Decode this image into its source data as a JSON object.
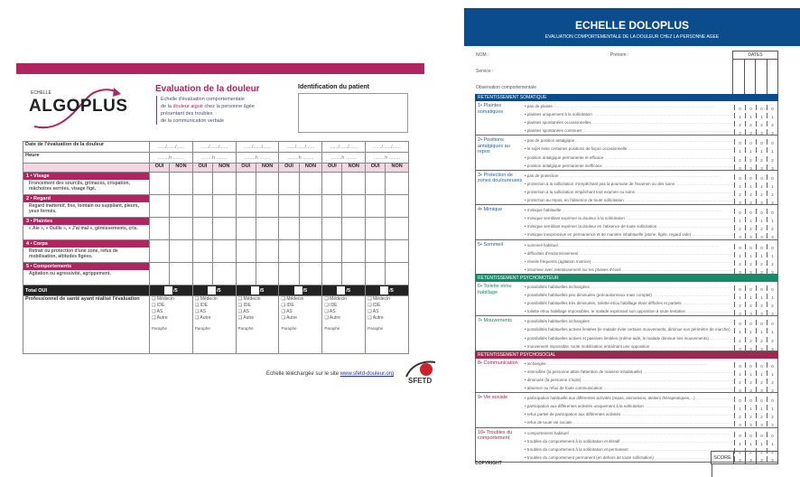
{
  "algoplus": {
    "accent": "#b0245f",
    "logo_small": "ECHELLE",
    "logo_main": "ALGOPLUS",
    "title": "Evaluation de la douleur",
    "desc": [
      "Echelle d'évaluation comportementale",
      "de la ",
      "douleur aiguë",
      " chez la personne âgée",
      "présentant des troubles",
      "de la communication verbale"
    ],
    "id_title": "Identification du patient",
    "date_label": "Date de l'évaluation de la douleur",
    "date_placeholder": "....../....../......",
    "hour_label": "Heure",
    "hour_placeholder": "........h ........",
    "oui": "OUI",
    "non": "NON",
    "items": [
      {
        "title": "1 • Visage",
        "desc": "Froncement des sourcils, grimaces, crispation, mâchoires serrées, visage figé."
      },
      {
        "title": "2 • Regard",
        "desc": "Regard inattentif, fixe, lointain ou suppliant, pleurs, yeux fermés."
      },
      {
        "title": "3 • Plaintes",
        "desc": "« Aie », « Ouille », « J'ai mal », gémissements, cris."
      },
      {
        "title": "4 • Corps",
        "desc": "Retrait ou protection d'une zone, refus de mobilisation, attitudes figées."
      },
      {
        "title": "5 • Comportements",
        "desc": "Agitation ou agressivité, agrippement."
      }
    ],
    "total_label": "Total OUI",
    "total_suffix": "/5",
    "prof_label": "Professionnel de santé ayant réalisé l'évaluation",
    "prof_options": [
      "❑ Médecin",
      "❑ IDE",
      "❑ AS",
      "❑ Autre"
    ],
    "paraphe": "Paraphe",
    "footer_text": "Echelle téléchargée sur le site ",
    "footer_link": "www.sfetd-douleur.org",
    "sfetd_logo": "SFETD"
  },
  "doloplus": {
    "accent": "#0b4d8c",
    "title": "ECHELLE DOLOPLUS",
    "subtitle": "EVALUATION COMPORTEMENTALE DE LA DOULEUR CHEZ LA PERSONNE AGEE",
    "nom": "NOM :",
    "prenom": "Prénom :",
    "service": "Service :",
    "observation": "Observation comportementale",
    "dates": "DATES",
    "sections": [
      {
        "title": "RETENTISSEMENT SOMATIQUE",
        "color": "#0b4d8c",
        "label_color": "#2a5fa0",
        "groups": [
          {
            "label": "1• Plaintes somatiques",
            "lines": [
              "pas de plainte",
              "plaintes uniquement à la sollicitation",
              "plaintes spontanées occasionnelles",
              "plaintes spontanées continues"
            ]
          },
          {
            "label": "2• Positions antalgiques au repos",
            "lines": [
              "pas de position antalgique",
              "le sujet évite certaines positions de façon occasionnelle",
              "position antalgique permanente et efficace",
              "position antalgique permanente inefficace"
            ]
          },
          {
            "label": "3• Protection de zones douloureuses",
            "lines": [
              "pas de protection",
              "protection à la sollicitation n'empêchant pas la poursuite de l'examen ou des soins",
              "protection à la sollicitation empêchant tout examen ou soins",
              "protection au repos, en l'absence de toute sollicitation"
            ]
          },
          {
            "label": "4• Mimique",
            "lines": [
              "mimique habituelle",
              "mimique semblant exprimer la douleur à la sollicitation",
              "mimique semblant exprimer la douleur en l'absence de toute sollicitation",
              "mimique inexpressive en permanence et de manière inhabituelle (atone, figée, regard vide)"
            ]
          },
          {
            "label": "5• Sommeil",
            "lines": [
              "sommeil habituel",
              "difficultés d'endormissement",
              "réveils fréquents (agitation motrice)",
              "insomnie avec retentissement sur les phases d'éveil"
            ]
          }
        ]
      },
      {
        "title": "RETENTISSEMENT PSYCHOMOTEUR",
        "color": "#178a6a",
        "label_color": "#178a6a",
        "groups": [
          {
            "label": "6• Toilette et/ou habillage",
            "lines": [
              "possibilités habituelles inchangées",
              "possibilités habituelles peu diminuées (précautionneux mais complet)",
              "possibilités habituelles très diminuées, toilette et/ou habillage étant difficiles et partiels",
              "toilette et/ou habillage impossibles, le malade exprimant son opposition à toute tentative"
            ]
          },
          {
            "label": "7• Mouvements",
            "lines": [
              "possibilités habituelles inchangées",
              "possibilités habituelles actives limitées (le malade évite certains mouvements, diminue son périmètre de marche)",
              "possibilités habituelles actives et passives limitées (même aidé, le malade diminue ses mouvements)",
              "mouvement impossible, toute mobilisation entraînant une opposition"
            ]
          }
        ]
      },
      {
        "title": "RETENTISSEMENT PSYCHOSOCIAL",
        "color": "#a3264f",
        "label_color": "#a3264f",
        "groups": [
          {
            "label": "8• Communication",
            "lines": [
              "inchangée",
              "intensifiée (la personne attire l'attention de manière inhabituelle)",
              "diminuée (la personne s'isole)",
              "absence ou refus de toute communication"
            ]
          },
          {
            "label": "9• Vie sociale",
            "lines": [
              "participation habituelle aux différentes activités (repas, animations, ateliers thérapeutiques,...)",
              "participation aux différentes activités uniquement à la sollicitation",
              "refus partiel de participation aux différentes activités",
              "refus de toute vie sociale"
            ]
          },
          {
            "label": "10• Troubles du comportement",
            "lines": [
              "comportement habituel",
              "troubles du comportement à la sollicitation et itératif",
              "troubles du comportement à la sollicitation et permanent",
              "troubles du comportement permanent (en dehors de toute sollicitation)"
            ]
          }
        ]
      }
    ],
    "scores": [
      "0",
      "1",
      "2",
      "3"
    ],
    "score_label": "SCORE",
    "copyright": "COPYRIGHT"
  }
}
